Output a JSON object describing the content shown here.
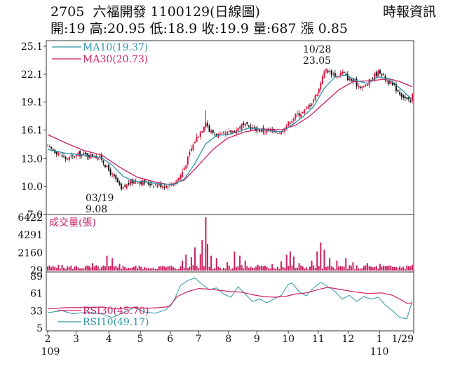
{
  "header": {
    "code": "2705",
    "name": "六福開發",
    "chart_label": "1100129(日線圖)",
    "stats": "開:19 高:20.95 低:18.9 收:19.9 量:687 漲 0.85",
    "source": "時報資訊"
  },
  "chart_data": [
    {
      "type": "candlestick",
      "panel": "price",
      "yticks": [
        "25.1",
        "22.1",
        "19.1",
        "16.1",
        "13.0",
        "10.0",
        "7.0"
      ],
      "ylim": [
        7.0,
        25.1
      ],
      "xticks": [
        "2",
        "3",
        "4",
        "5",
        "6",
        "7",
        "8",
        "9",
        "10",
        "11",
        "12",
        "1",
        "1/29"
      ],
      "x_sublabels": [
        "109",
        "110"
      ],
      "legend": [
        {
          "label": "MA10(19.37)",
          "color": "#2e95a8"
        },
        {
          "label": "MA30(20.73)",
          "color": "#cc1f63"
        }
      ],
      "annotations": [
        {
          "date": "10/28",
          "value": "23.05",
          "kind": "high"
        },
        {
          "date": "03/19",
          "value": "9.08",
          "kind": "low"
        }
      ],
      "close_path": [
        [
          0,
          14.3
        ],
        [
          5,
          13.7
        ],
        [
          10,
          13.0
        ],
        [
          14,
          13.2
        ],
        [
          18,
          13.5
        ],
        [
          22,
          13.4
        ],
        [
          26,
          13.3
        ],
        [
          30,
          13.0
        ],
        [
          33,
          12.0
        ],
        [
          36,
          11.2
        ],
        [
          39,
          10.4
        ],
        [
          41,
          9.6
        ],
        [
          43,
          10.0
        ],
        [
          46,
          10.5
        ],
        [
          50,
          10.6
        ],
        [
          55,
          10.4
        ],
        [
          60,
          10.2
        ],
        [
          65,
          10.1
        ],
        [
          70,
          10.3
        ],
        [
          74,
          11.2
        ],
        [
          77,
          12.5
        ],
        [
          80,
          14.1
        ],
        [
          83,
          15.3
        ],
        [
          86,
          16.2
        ],
        [
          88,
          17.1
        ],
        [
          90,
          16.0
        ],
        [
          93,
          15.7
        ],
        [
          96,
          15.5
        ],
        [
          99,
          15.6
        ],
        [
          102,
          15.9
        ],
        [
          105,
          16.1
        ],
        [
          108,
          16.6
        ],
        [
          111,
          16.5
        ],
        [
          114,
          16.3
        ],
        [
          118,
          16.1
        ],
        [
          122,
          16.0
        ],
        [
          126,
          15.9
        ],
        [
          130,
          15.9
        ],
        [
          133,
          16.6
        ],
        [
          136,
          17.2
        ],
        [
          139,
          17.8
        ],
        [
          142,
          18.0
        ],
        [
          145,
          18.6
        ],
        [
          148,
          19.4
        ],
        [
          151,
          20.5
        ],
        [
          153,
          22.0
        ],
        [
          155,
          22.6
        ],
        [
          158,
          22.2
        ],
        [
          161,
          21.9
        ],
        [
          164,
          22.3
        ],
        [
          167,
          21.7
        ],
        [
          170,
          21.3
        ],
        [
          173,
          20.9
        ],
        [
          176,
          20.7
        ],
        [
          179,
          21.3
        ],
        [
          182,
          22.0
        ],
        [
          185,
          22.4
        ],
        [
          188,
          21.6
        ],
        [
          191,
          21.1
        ],
        [
          194,
          20.5
        ],
        [
          197,
          19.9
        ],
        [
          200,
          19.3
        ],
        [
          202,
          19.1
        ],
        [
          203,
          19.9
        ]
      ],
      "ma10": [
        [
          0,
          14.0
        ],
        [
          10,
          13.6
        ],
        [
          20,
          13.4
        ],
        [
          30,
          13.1
        ],
        [
          36,
          12.3
        ],
        [
          42,
          11.1
        ],
        [
          48,
          10.6
        ],
        [
          55,
          10.5
        ],
        [
          62,
          10.3
        ],
        [
          70,
          10.2
        ],
        [
          76,
          10.8
        ],
        [
          82,
          12.5
        ],
        [
          88,
          14.6
        ],
        [
          94,
          15.5
        ],
        [
          100,
          15.6
        ],
        [
          106,
          15.9
        ],
        [
          112,
          16.3
        ],
        [
          118,
          16.2
        ],
        [
          124,
          16.0
        ],
        [
          130,
          15.9
        ],
        [
          136,
          16.6
        ],
        [
          142,
          17.5
        ],
        [
          148,
          18.6
        ],
        [
          154,
          20.6
        ],
        [
          160,
          21.8
        ],
        [
          166,
          22.0
        ],
        [
          172,
          21.4
        ],
        [
          178,
          21.1
        ],
        [
          184,
          21.8
        ],
        [
          190,
          21.6
        ],
        [
          196,
          20.6
        ],
        [
          203,
          19.37
        ]
      ],
      "ma30": [
        [
          0,
          15.6
        ],
        [
          10,
          14.7
        ],
        [
          20,
          13.9
        ],
        [
          30,
          13.4
        ],
        [
          40,
          12.1
        ],
        [
          50,
          11.0
        ],
        [
          60,
          10.5
        ],
        [
          68,
          10.2
        ],
        [
          76,
          10.7
        ],
        [
          84,
          12.3
        ],
        [
          92,
          14.0
        ],
        [
          100,
          15.2
        ],
        [
          110,
          15.9
        ],
        [
          120,
          16.2
        ],
        [
          130,
          16.1
        ],
        [
          138,
          16.6
        ],
        [
          146,
          17.6
        ],
        [
          154,
          19.0
        ],
        [
          162,
          20.4
        ],
        [
          170,
          21.3
        ],
        [
          180,
          21.4
        ],
        [
          190,
          21.6
        ],
        [
          196,
          21.3
        ],
        [
          203,
          20.73
        ]
      ]
    },
    {
      "type": "bar",
      "panel": "volume",
      "yticks": [
        "6422",
        "4291",
        "2160",
        "29"
      ],
      "ylim": [
        0,
        6422
      ],
      "legend": [
        {
          "label": "成交量(張)",
          "color": "#cc1f63"
        }
      ],
      "spikes": [
        [
          0,
          500
        ],
        [
          6,
          700
        ],
        [
          12,
          400
        ],
        [
          25,
          900
        ],
        [
          33,
          1800
        ],
        [
          36,
          1500
        ],
        [
          40,
          800
        ],
        [
          55,
          300
        ],
        [
          70,
          400
        ],
        [
          75,
          1200
        ],
        [
          77,
          1900
        ],
        [
          80,
          1600
        ],
        [
          82,
          2800
        ],
        [
          85,
          2000
        ],
        [
          86,
          3700
        ],
        [
          88,
          6422
        ],
        [
          89,
          3200
        ],
        [
          91,
          1800
        ],
        [
          94,
          1500
        ],
        [
          100,
          1000
        ],
        [
          104,
          2300
        ],
        [
          107,
          1800
        ],
        [
          110,
          1200
        ],
        [
          117,
          700
        ],
        [
          125,
          800
        ],
        [
          130,
          1100
        ],
        [
          133,
          1900
        ],
        [
          135,
          2300
        ],
        [
          137,
          1700
        ],
        [
          140,
          900
        ],
        [
          147,
          1200
        ],
        [
          150,
          2300
        ],
        [
          152,
          3400
        ],
        [
          154,
          2500
        ],
        [
          157,
          1500
        ],
        [
          161,
          1200
        ],
        [
          166,
          1500
        ],
        [
          170,
          1000
        ],
        [
          178,
          900
        ],
        [
          185,
          800
        ],
        [
          190,
          600
        ],
        [
          196,
          500
        ],
        [
          200,
          600
        ],
        [
          203,
          700
        ]
      ]
    },
    {
      "type": "line",
      "panel": "rsi",
      "yticks": [
        "89",
        "61",
        "33",
        "5"
      ],
      "ylim": [
        5,
        89
      ],
      "legend": [
        {
          "label": "RSI30(45.70)",
          "color": "#cc1f63"
        },
        {
          "label": "RSI10(49.17)",
          "color": "#2e95a8"
        }
      ],
      "rsi30": [
        [
          0,
          36
        ],
        [
          10,
          38
        ],
        [
          20,
          38
        ],
        [
          30,
          39
        ],
        [
          38,
          36
        ],
        [
          45,
          38
        ],
        [
          55,
          37
        ],
        [
          62,
          38
        ],
        [
          68,
          40
        ],
        [
          72,
          56
        ],
        [
          78,
          64
        ],
        [
          84,
          69
        ],
        [
          90,
          68
        ],
        [
          96,
          66
        ],
        [
          102,
          64
        ],
        [
          108,
          63
        ],
        [
          114,
          59
        ],
        [
          120,
          56
        ],
        [
          126,
          55
        ],
        [
          132,
          56
        ],
        [
          138,
          60
        ],
        [
          144,
          62
        ],
        [
          150,
          67
        ],
        [
          156,
          71
        ],
        [
          162,
          68
        ],
        [
          170,
          64
        ],
        [
          178,
          61
        ],
        [
          186,
          62
        ],
        [
          192,
          58
        ],
        [
          196,
          52
        ],
        [
          200,
          45
        ],
        [
          203,
          45.7
        ]
      ],
      "rsi10": [
        [
          0,
          30
        ],
        [
          8,
          33
        ],
        [
          14,
          28
        ],
        [
          22,
          31
        ],
        [
          30,
          28
        ],
        [
          36,
          22
        ],
        [
          42,
          30
        ],
        [
          48,
          38
        ],
        [
          54,
          31
        ],
        [
          60,
          29
        ],
        [
          66,
          35
        ],
        [
          70,
          48
        ],
        [
          74,
          74
        ],
        [
          78,
          82
        ],
        [
          82,
          86
        ],
        [
          86,
          76
        ],
        [
          90,
          67
        ],
        [
          94,
          70
        ],
        [
          98,
          60
        ],
        [
          102,
          55
        ],
        [
          106,
          72
        ],
        [
          110,
          60
        ],
        [
          114,
          48
        ],
        [
          118,
          52
        ],
        [
          122,
          46
        ],
        [
          126,
          52
        ],
        [
          130,
          58
        ],
        [
          134,
          76
        ],
        [
          136,
          78
        ],
        [
          140,
          64
        ],
        [
          144,
          57
        ],
        [
          148,
          70
        ],
        [
          152,
          79
        ],
        [
          156,
          72
        ],
        [
          160,
          64
        ],
        [
          164,
          52
        ],
        [
          168,
          58
        ],
        [
          172,
          48
        ],
        [
          176,
          56
        ],
        [
          180,
          52
        ],
        [
          184,
          55
        ],
        [
          188,
          42
        ],
        [
          192,
          33
        ],
        [
          196,
          22
        ],
        [
          200,
          20
        ],
        [
          203,
          49.17
        ]
      ]
    }
  ]
}
